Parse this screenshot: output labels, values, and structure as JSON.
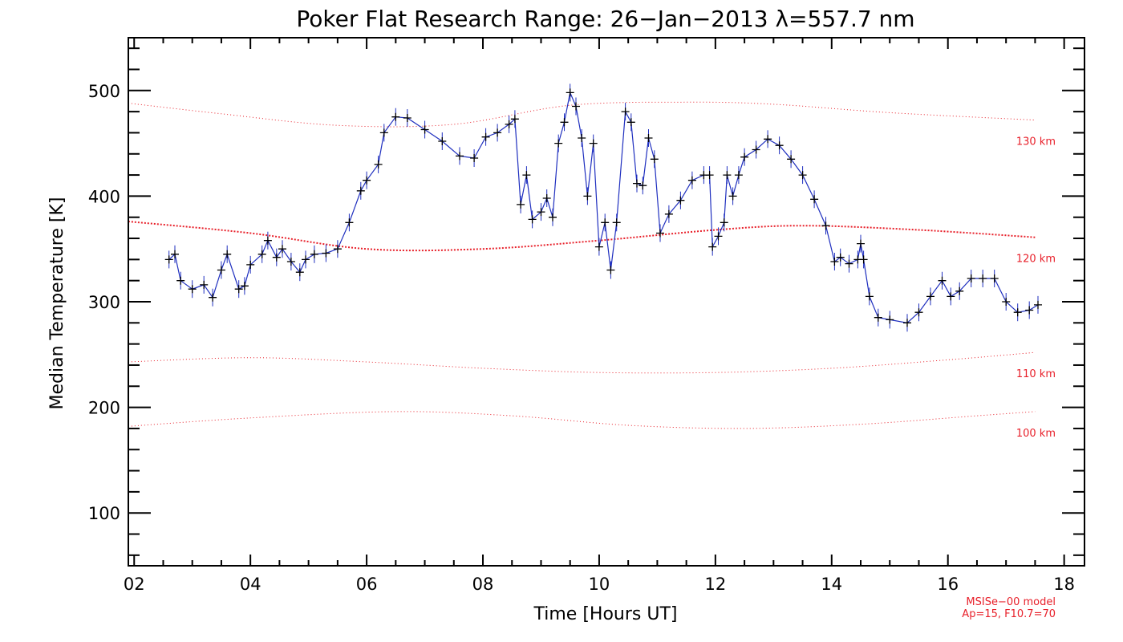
{
  "chart_data": {
    "type": "line",
    "title": "Poker Flat Research Range: 26−Jan−2013 λ=557.7 nm",
    "xlabel": "Time [Hours UT]",
    "ylabel": "Median Temperature [K]",
    "xlim": [
      1.9,
      18.35
    ],
    "ylim": [
      50,
      550
    ],
    "x_ticks": [
      2,
      4,
      6,
      8,
      10,
      12,
      14,
      16,
      18
    ],
    "x_tick_labels": [
      "02",
      "04",
      "06",
      "08",
      "10",
      "12",
      "14",
      "16",
      "18"
    ],
    "y_ticks": [
      100,
      200,
      300,
      400,
      500
    ],
    "y_tick_labels": [
      "100",
      "200",
      "300",
      "400",
      "500"
    ],
    "grid": false,
    "colors": {
      "data_line": "#1f2fbf",
      "markers": "#000000",
      "model": "#e8202a",
      "axes": "#000000"
    },
    "series": [
      {
        "x": [
          2.6,
          2.7,
          2.8,
          3.0,
          3.2,
          3.35,
          3.5,
          3.6,
          3.8,
          3.9,
          4.0,
          4.2,
          4.3,
          4.45,
          4.55,
          4.7,
          4.85,
          4.95,
          5.1,
          5.3,
          5.5,
          5.7,
          5.9,
          6.0,
          6.2,
          6.3,
          6.5,
          6.7,
          7.0,
          7.3,
          7.6,
          7.85,
          8.05,
          8.25,
          8.45,
          8.55,
          8.65,
          8.75,
          8.85,
          9.0,
          9.1,
          9.2,
          9.3,
          9.4,
          9.5,
          9.6,
          9.7,
          9.8,
          9.9,
          10.0,
          10.1,
          10.2,
          10.3,
          10.45,
          10.55,
          10.65,
          10.75,
          10.85,
          10.95,
          11.05,
          11.2,
          11.4,
          11.6,
          11.8,
          11.9,
          11.95,
          12.05,
          12.15,
          12.2,
          12.3,
          12.4,
          12.5,
          12.7,
          12.9,
          13.1,
          13.3,
          13.5,
          13.7,
          13.9,
          14.05,
          14.15,
          14.3,
          14.45,
          14.5,
          14.55,
          14.65,
          14.8,
          15.0,
          15.3,
          15.5,
          15.7,
          15.9,
          16.05,
          16.2,
          16.4,
          16.6,
          16.8,
          17.0,
          17.2,
          17.4,
          17.55
        ],
        "values": [
          340,
          345,
          320,
          312,
          316,
          304,
          330,
          345,
          312,
          315,
          335,
          345,
          358,
          342,
          350,
          338,
          328,
          340,
          345,
          346,
          350,
          375,
          405,
          415,
          430,
          460,
          475,
          474,
          463,
          452,
          438,
          436,
          456,
          460,
          468,
          473,
          392,
          420,
          378,
          385,
          398,
          380,
          450,
          470,
          498,
          485,
          455,
          400,
          450,
          352,
          375,
          330,
          375,
          480,
          470,
          412,
          410,
          455,
          435,
          365,
          383,
          396,
          415,
          420,
          420,
          352,
          362,
          375,
          420,
          400,
          420,
          437,
          444,
          454,
          448,
          435,
          420,
          397,
          372,
          338,
          342,
          336,
          340,
          355,
          340,
          305,
          285,
          283,
          280,
          290,
          305,
          320,
          305,
          310,
          322,
          322,
          322,
          300,
          290,
          292,
          297
        ]
      }
    ],
    "model_curves": [
      {
        "label": "130 km",
        "x": [
          1.9,
          3.5,
          5.5,
          7.5,
          9.5,
          11.5,
          13.0,
          15.0,
          17.5
        ],
        "values": [
          488,
          478,
          467,
          468,
          486,
          489,
          487,
          479,
          472
        ]
      },
      {
        "label": "120 km",
        "x": [
          1.9,
          4.0,
          6.0,
          8.0,
          10.0,
          12.0,
          13.5,
          15.5,
          17.5
        ],
        "values": [
          376,
          365,
          350,
          350,
          358,
          368,
          372,
          368,
          361
        ]
      },
      {
        "label": "110 km",
        "x": [
          1.9,
          4.0,
          6.0,
          8.0,
          10.0,
          12.0,
          14.0,
          16.0,
          17.5
        ],
        "values": [
          243,
          247,
          243,
          237,
          233,
          233,
          237,
          245,
          252
        ]
      },
      {
        "label": "100 km",
        "x": [
          1.9,
          4.0,
          6.5,
          8.5,
          10.5,
          12.5,
          14.5,
          16.5,
          17.5
        ],
        "values": [
          182,
          190,
          196,
          192,
          183,
          180,
          184,
          192,
          196
        ]
      }
    ],
    "annotations": [
      "MSISe−00 model",
      "Ap=15, F10.7=70"
    ]
  }
}
